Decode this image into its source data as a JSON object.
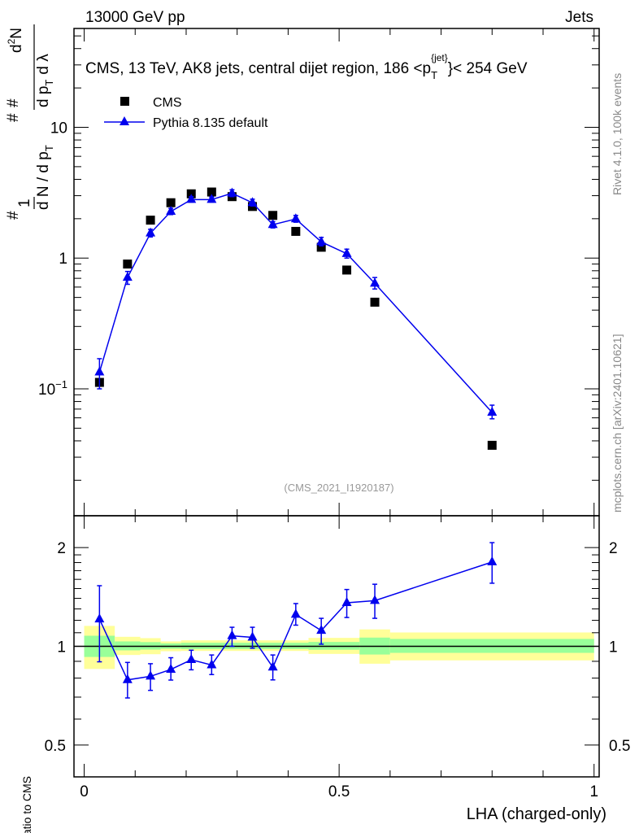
{
  "header": {
    "left": "13000 GeV pp",
    "right": "Jets"
  },
  "side_labels": {
    "rivet": "Rivet 4.1.0,  100k events",
    "mcplots": "mcplots.cern.ch [arXiv:2401.10621]"
  },
  "analysis_id": "(CMS_2021_I1920187)",
  "colors": {
    "data": "#000000",
    "mc": "#0000ee",
    "band_outer": "#ffff99",
    "band_inner": "#99ff99"
  },
  "chart_data": [
    {
      "type": "line",
      "title": "CMS, 13 TeV, AK8 jets, central dijet region, 186 <p_T^{jet}< 254 GeV",
      "title_parts": {
        "main": "CMS, 13 TeV, AK8 jets, central dijet region, 186 <p",
        "sub": "T",
        "sup": "{jet}",
        "tail": "}< 254 GeV"
      },
      "ylabel": "1/(dN/dp_T) d²N/(dp_T dλ)",
      "ylabel_parts": {
        "a": "1",
        "b": "d N / d p",
        "c": "T",
        "d": "d",
        "e": "2",
        "f": "N",
        "g": "d p",
        "h": "T",
        "i": "d λ",
        "hash": "#"
      },
      "yscale": "log",
      "ylim": [
        0.0107,
        57
      ],
      "xlim": [
        -0.02,
        1.01
      ],
      "yticks": [
        {
          "v": 0.1,
          "label": "10",
          "sup": "−1"
        },
        {
          "v": 1,
          "label": "1",
          "sup": ""
        },
        {
          "v": 10,
          "label": "10",
          "sup": ""
        }
      ],
      "legend": {
        "position": "top-left",
        "entries": [
          "CMS",
          "Pythia 8.135 default"
        ]
      },
      "x": [
        0.03,
        0.085,
        0.13,
        0.17,
        0.21,
        0.25,
        0.29,
        0.33,
        0.37,
        0.415,
        0.465,
        0.515,
        0.57,
        0.8
      ],
      "series": [
        {
          "name": "CMS",
          "marker": "square",
          "values": [
            0.112,
            0.9,
            1.95,
            2.65,
            3.1,
            3.2,
            2.95,
            2.48,
            2.12,
            1.6,
            1.21,
            0.81,
            0.46,
            0.037
          ]
        },
        {
          "name": "Pythia 8.135 default",
          "marker": "triangle",
          "values": [
            0.134,
            0.71,
            1.55,
            2.27,
            2.8,
            2.8,
            3.13,
            2.65,
            1.8,
            1.99,
            1.33,
            1.08,
            0.64,
            0.066
          ],
          "err_low": [
            0.1,
            0.63,
            1.45,
            2.15,
            2.68,
            2.68,
            2.95,
            2.5,
            1.7,
            1.88,
            1.24,
            1.0,
            0.58,
            0.059
          ],
          "err_high": [
            0.17,
            0.79,
            1.66,
            2.4,
            2.95,
            2.93,
            3.33,
            2.82,
            1.9,
            2.12,
            1.44,
            1.17,
            0.71,
            0.075
          ]
        }
      ]
    },
    {
      "type": "line",
      "ylabel": "Ratio to CMS",
      "xlabel": "LHA (charged-only)",
      "yscale": "log",
      "ylim": [
        0.4,
        2.5
      ],
      "xlim": [
        -0.02,
        1.01
      ],
      "yticks": [
        {
          "v": 0.5,
          "label": "0.5"
        },
        {
          "v": 1,
          "label": "1"
        },
        {
          "v": 2,
          "label": "2"
        }
      ],
      "xticks": [
        {
          "v": 0,
          "label": "0"
        },
        {
          "v": 0.5,
          "label": "0.5"
        },
        {
          "v": 1,
          "label": "1"
        }
      ],
      "bands": {
        "edges": [
          0,
          0.06,
          0.11,
          0.15,
          0.19,
          0.44,
          0.54,
          0.6,
          1.0
        ],
        "outer_low": [
          0.853,
          0.941,
          0.946,
          0.966,
          0.968,
          0.948,
          0.885,
          0.906
        ],
        "outer_high": [
          1.154,
          1.069,
          1.059,
          1.035,
          1.043,
          1.061,
          1.126,
          1.102
        ],
        "inner_low": [
          0.928,
          0.972,
          0.977,
          0.983,
          0.981,
          0.976,
          0.944,
          0.955
        ],
        "inner_high": [
          1.077,
          1.035,
          1.03,
          1.021,
          1.025,
          1.031,
          1.063,
          1.053
        ]
      },
      "x": [
        0.03,
        0.085,
        0.13,
        0.17,
        0.21,
        0.25,
        0.29,
        0.33,
        0.37,
        0.415,
        0.465,
        0.515,
        0.57,
        0.8
      ],
      "series": [
        {
          "name": "Pythia 8.135 default / CMS",
          "values": [
            1.21,
            0.79,
            0.81,
            0.85,
            0.91,
            0.877,
            1.076,
            1.065,
            0.863,
            1.25,
            1.117,
            1.357,
            1.378,
            1.807
          ],
          "err_low": [
            0.897,
            0.696,
            0.734,
            0.789,
            0.848,
            0.82,
            1.0,
            0.987,
            0.79,
            1.16,
            1.015,
            1.224,
            1.217,
            1.557
          ],
          "err_high": [
            1.53,
            0.893,
            0.885,
            0.923,
            0.973,
            0.941,
            1.143,
            1.143,
            0.941,
            1.35,
            1.217,
            1.49,
            1.546,
            2.07
          ]
        }
      ]
    }
  ]
}
